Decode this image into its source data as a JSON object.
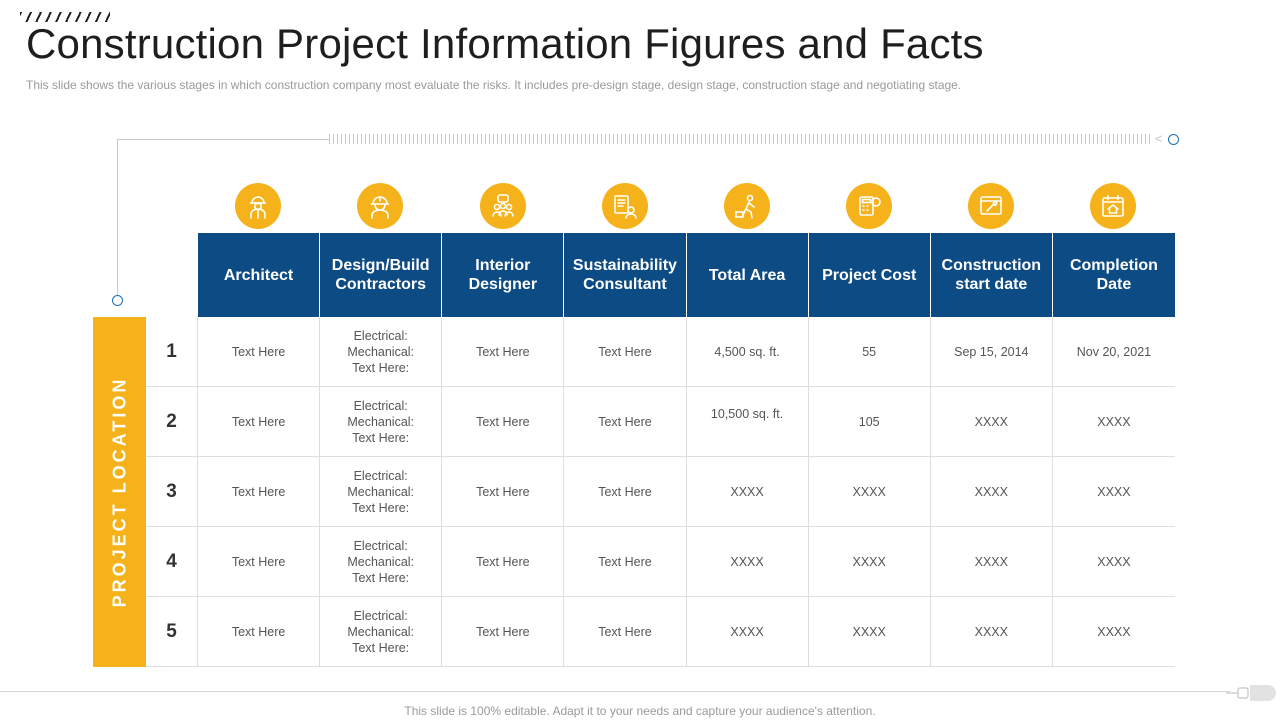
{
  "title": "Construction Project Information Figures and Facts",
  "subtitle": "This slide shows the various  stages in which construction company most evaluate  the risks. It includes pre-design  stage, design stage, construction stage and negotiating stage.",
  "side_label": "PROJECT LOCATION",
  "icons": [
    "worker-icon",
    "engineer-helmet-icon",
    "team-icon",
    "blueprint-icon",
    "builder-icon",
    "calculator-icon",
    "browser-tools-icon",
    "calendar-house-icon"
  ],
  "accent_color": "#f6b21a",
  "header_color": "#0d4b84",
  "columns": [
    "Architect",
    "Design/Build Contractors",
    "Interior Designer",
    "Sustainability Consultant",
    "Total Area",
    "Project Cost",
    "Construction start date",
    "Completion Date"
  ],
  "rows": [
    {
      "num": "1",
      "cells": [
        "Text Here",
        "Electrical:\nMechanical:\nText Here:",
        "Text Here",
        "Text Here",
        "4,500 sq. ft.",
        "55",
        "Sep 15, 2014",
        "Nov 20, 2021"
      ]
    },
    {
      "num": "2",
      "cells": [
        "Text Here",
        "Electrical:\nMechanical:\nText Here:",
        "Text Here",
        "Text Here",
        "10,500 sq. ft.",
        "105",
        "XXXX",
        "XXXX"
      ]
    },
    {
      "num": "3",
      "cells": [
        "Text Here",
        "Electrical:\nMechanical:\nText Here:",
        "Text Here",
        "Text Here",
        "XXXX",
        "XXXX",
        "XXXX",
        "XXXX"
      ]
    },
    {
      "num": "4",
      "cells": [
        "Text Here",
        "Electrical:\nMechanical:\nText Here:",
        "Text Here",
        "Text Here",
        "XXXX",
        "XXXX",
        "XXXX",
        "XXXX"
      ]
    },
    {
      "num": "5",
      "cells": [
        "Text Here",
        "Electrical:\nMechanical:\nText Here:",
        "Text Here",
        "Text Here",
        "XXXX",
        "XXXX",
        "XXXX",
        "XXXX"
      ]
    }
  ],
  "footer": "This slide is 100% editable. Adapt it to your needs and capture your audience's attention."
}
